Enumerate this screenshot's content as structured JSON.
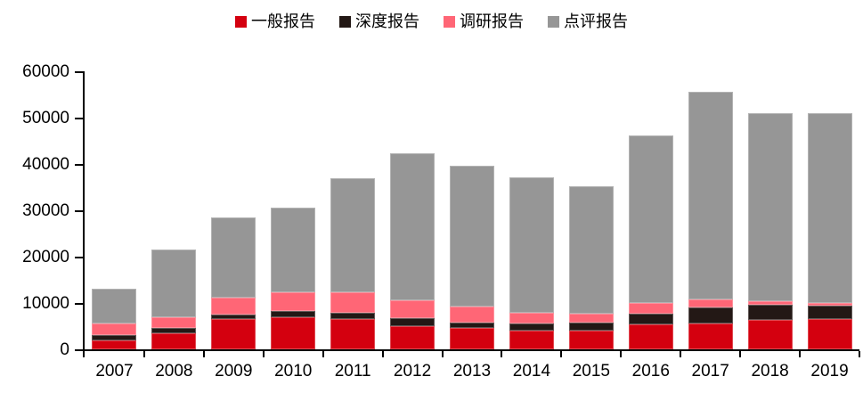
{
  "chart_data": {
    "type": "bar",
    "stacked": true,
    "title": "",
    "xlabel": "",
    "ylabel": "",
    "grid": false,
    "legend_position": "top",
    "ylim": [
      0,
      60000
    ],
    "ytick_labels": [
      "0",
      "10000",
      "20000",
      "30000",
      "40000",
      "50000",
      "60000"
    ],
    "categories": [
      "2007",
      "2008",
      "2009",
      "2010",
      "2011",
      "2012",
      "2013",
      "2014",
      "2015",
      "2016",
      "2017",
      "2018",
      "2019"
    ],
    "series": [
      {
        "name": "一般报告",
        "key": "general-report",
        "color": "#d4000f",
        "values": [
          2000,
          3500,
          6500,
          6900,
          6600,
          5000,
          4600,
          4000,
          4000,
          5400,
          5600,
          6300,
          6500
        ]
      },
      {
        "name": "深度报告",
        "key": "in-depth-report",
        "color": "#231815",
        "values": [
          1000,
          1200,
          1000,
          1300,
          1300,
          1700,
          1100,
          1500,
          1700,
          2300,
          3400,
          3300,
          2900
        ]
      },
      {
        "name": "调研报告",
        "key": "survey-report",
        "color": "#ff6676",
        "values": [
          2500,
          2200,
          3700,
          4200,
          4400,
          3800,
          3600,
          2300,
          2100,
          2300,
          1700,
          800,
          600
        ]
      },
      {
        "name": "点评报告",
        "key": "commentary-report",
        "color": "#969696",
        "values": [
          7500,
          14600,
          17200,
          18100,
          24700,
          31800,
          30400,
          29400,
          27500,
          36200,
          44900,
          40600,
          41000
        ]
      }
    ],
    "totals": [
      13000,
      21500,
      28400,
      30500,
      37000,
      42300,
      39700,
      37200,
      35300,
      46200,
      55600,
      51000,
      51000
    ],
    "axis_color": "#000000",
    "text_color": "#000000",
    "background_color": "#ffffff"
  }
}
